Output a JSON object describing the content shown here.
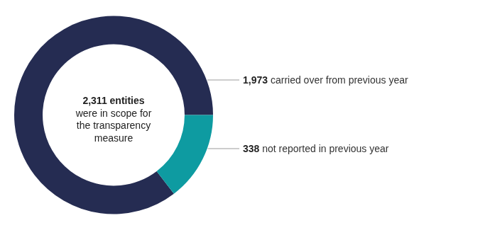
{
  "chart_data": {
    "type": "doughnut",
    "categories": [
      "carried over from previous year",
      "not reported in previous year"
    ],
    "values": [
      1973,
      338
    ],
    "value_labels": [
      "1,973",
      "338"
    ],
    "colors": [
      "#252c52",
      "#0e9ba1"
    ],
    "data_labels": true,
    "annotations": [
      "2,311 entities",
      "were in scope for",
      "the transparency",
      "measure"
    ]
  }
}
